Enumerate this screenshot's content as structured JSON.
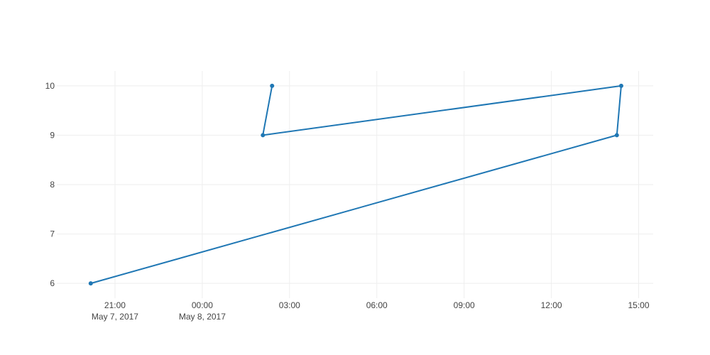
{
  "chart_data": {
    "type": "line",
    "mode": "lines+markers",
    "series": [
      {
        "color": "#1f77b4",
        "points": [
          {
            "x": "2017-05-07 20:10",
            "y": 6
          },
          {
            "x": "2017-05-08 14:15",
            "y": 9
          },
          {
            "x": "2017-05-08 14:24",
            "y": 10
          },
          {
            "x": "2017-05-08 02:05",
            "y": 9
          },
          {
            "x": "2017-05-08 02:24",
            "y": 10
          }
        ]
      }
    ],
    "xaxis": {
      "type": "date",
      "range": [
        "2017-05-07 19:00",
        "2017-05-08 15:30"
      ],
      "ticks": [
        {
          "value": "2017-05-07 21:00",
          "label": "21:00",
          "sublabel": "May 7, 2017"
        },
        {
          "value": "2017-05-08 00:00",
          "label": "00:00",
          "sublabel": "May 8, 2017"
        },
        {
          "value": "2017-05-08 03:00",
          "label": "03:00",
          "sublabel": ""
        },
        {
          "value": "2017-05-08 06:00",
          "label": "06:00",
          "sublabel": ""
        },
        {
          "value": "2017-05-08 09:00",
          "label": "09:00",
          "sublabel": ""
        },
        {
          "value": "2017-05-08 12:00",
          "label": "12:00",
          "sublabel": ""
        },
        {
          "value": "2017-05-08 15:00",
          "label": "15:00",
          "sublabel": ""
        }
      ],
      "grid": true
    },
    "yaxis": {
      "range": [
        5.7,
        10.3
      ],
      "ticks": [
        {
          "value": 6,
          "label": "6"
        },
        {
          "value": 7,
          "label": "7"
        },
        {
          "value": 8,
          "label": "8"
        },
        {
          "value": 9,
          "label": "9"
        },
        {
          "value": 10,
          "label": "10"
        }
      ],
      "grid": true
    },
    "title": "",
    "xlabel": "",
    "ylabel": "",
    "legend": "none"
  }
}
